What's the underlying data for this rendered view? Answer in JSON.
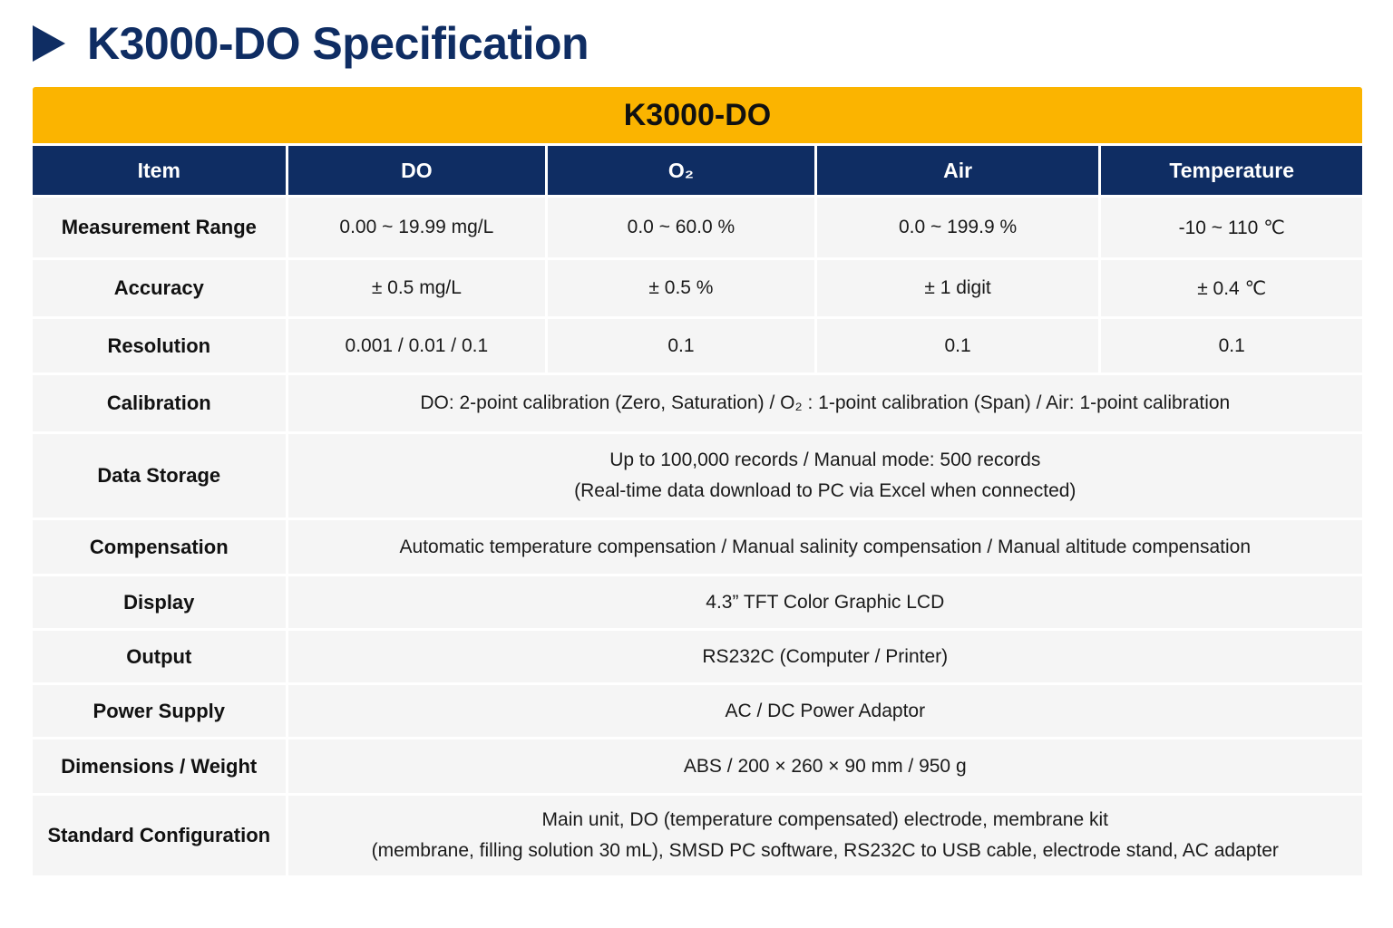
{
  "page_title": "K3000-DO Specification",
  "banner": "K3000-DO",
  "columns": [
    "Item",
    "DO",
    "O₂",
    "Air",
    "Temperature"
  ],
  "rows": {
    "measurement_range": {
      "label": "Measurement Range",
      "do": "0.00 ~ 19.99 mg/L",
      "o2": "0.0 ~ 60.0 %",
      "air": "0.0 ~ 199.9 %",
      "temperature": "-10 ~ 110 ℃"
    },
    "accuracy": {
      "label": "Accuracy",
      "do": "± 0.5 mg/L",
      "o2": "± 0.5 %",
      "air": "± 1 digit",
      "temperature": "± 0.4 ℃"
    },
    "resolution": {
      "label": "Resolution",
      "do": "0.001 / 0.01 / 0.1",
      "o2": "0.1",
      "air": "0.1",
      "temperature": "0.1"
    },
    "calibration": {
      "label": "Calibration",
      "value": "DO: 2-point calibration (Zero, Saturation) / O₂ : 1-point calibration (Span) / Air: 1-point calibration"
    },
    "data_storage": {
      "label": "Data Storage",
      "line1": "Up to 100,000 records / Manual mode: 500 records",
      "line2": "(Real-time data download to PC via Excel when connected)"
    },
    "compensation": {
      "label": "Compensation",
      "value": "Automatic temperature compensation / Manual salinity compensation / Manual altitude compensation"
    },
    "display": {
      "label": "Display",
      "value": "4.3” TFT Color Graphic LCD"
    },
    "output": {
      "label": "Output",
      "value": "RS232C (Computer / Printer)"
    },
    "power_supply": {
      "label": "Power Supply",
      "value": "AC / DC Power Adaptor"
    },
    "dimensions_weight": {
      "label": "Dimensions / Weight",
      "value": "ABS / 200 × 260 × 90 mm / 950 g"
    },
    "standard_configuration": {
      "label": "Standard Configuration",
      "line1": "Main unit, DO (temperature compensated) electrode, membrane kit",
      "line2": "(membrane, filling solution 30 mL), SMSD PC software, RS232C to USB cable, electrode stand, AC adapter"
    }
  },
  "colors": {
    "navy": "#0f2d63",
    "banner_yellow": "#fbb400",
    "cell_bg": "#f5f5f5"
  },
  "icons": {
    "heading_marker": "play-triangle-icon"
  }
}
